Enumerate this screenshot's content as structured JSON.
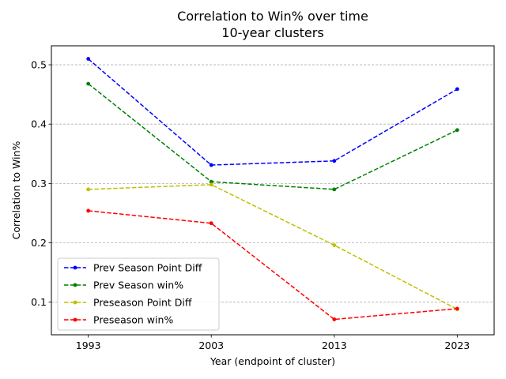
{
  "chart_data": {
    "type": "line",
    "title": "Correlation to Win% over time",
    "subtitle": "10-year clusters",
    "xlabel": "Year (endpoint of cluster)",
    "ylabel": "Correlation to Win%",
    "x": [
      1993,
      2003,
      2013,
      2023
    ],
    "xticks": [
      "1993",
      "2003",
      "2013",
      "2023"
    ],
    "xlim": [
      1990,
      2026
    ],
    "ylim": [
      0.045,
      0.532
    ],
    "yticks": [
      0.1,
      0.2,
      0.3,
      0.4,
      0.5
    ],
    "ytick_labels": [
      "0.1",
      "0.2",
      "0.3",
      "0.4",
      "0.5"
    ],
    "grid": "y-dashed",
    "legend_position": "lower-left",
    "series": [
      {
        "name": "Prev Season Point Diff",
        "color": "#0000ff",
        "values": [
          0.51,
          0.331,
          0.338,
          0.459
        ]
      },
      {
        "name": "Prev Season win%",
        "color": "#008000",
        "values": [
          0.468,
          0.303,
          0.29,
          0.39
        ]
      },
      {
        "name": "Preseason Point Diff",
        "color": "#bfbf00",
        "values": [
          0.29,
          0.298,
          0.196,
          0.088
        ]
      },
      {
        "name": "Preseason win%",
        "color": "#ff0000",
        "values": [
          0.254,
          0.233,
          0.071,
          0.089
        ]
      }
    ]
  }
}
